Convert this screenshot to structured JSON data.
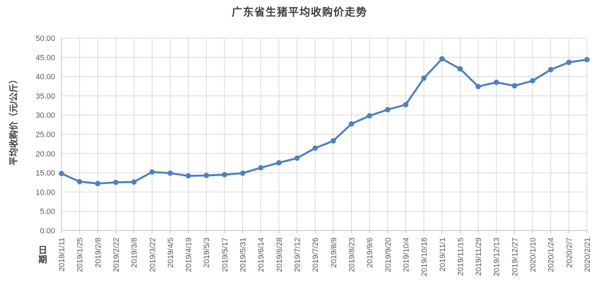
{
  "chart_data": {
    "type": "line",
    "title": "广东省生猪平均收购价走势",
    "ylabel": "平均收购价（元/公斤）",
    "xlabel": "日期",
    "categories": [
      "2019/1/11",
      "2019/1/25",
      "2019/2/8",
      "2019/2/22",
      "2019/3/8",
      "2019/3/22",
      "2019/4/5",
      "2019/4/19",
      "2019/5/3",
      "2019/5/17",
      "2019/5/31",
      "2019/6/14",
      "2019/6/28",
      "2019/7/12",
      "2019/7/26",
      "2019/8/9",
      "2019/8/23",
      "2019/9/6",
      "2019/9/20",
      "2019/10/4",
      "2019/10/18",
      "2019/11/1",
      "2019/11/15",
      "2019/11/29",
      "2019/12/13",
      "2019/12/27",
      "2020/1/10",
      "2020/1/24",
      "2020/2/7",
      "2020/2/21"
    ],
    "values": [
      14.8,
      12.7,
      12.2,
      12.5,
      12.6,
      15.2,
      14.9,
      14.2,
      14.3,
      14.5,
      14.9,
      16.3,
      17.6,
      18.8,
      21.4,
      23.3,
      27.7,
      29.8,
      31.4,
      32.7,
      39.6,
      44.6,
      42.0,
      37.4,
      38.5,
      37.6,
      38.9,
      41.8,
      43.7,
      44.4
    ],
    "ylim": [
      0,
      50
    ],
    "ytick_step": 5,
    "ytick_decimals": 2,
    "grid": true,
    "legend": "none",
    "marker": "circle",
    "colors": {
      "series": "#4f81bd",
      "grid": "#d9d9d9",
      "axis": "#bfbfbf",
      "tick_label": "#595959",
      "title": "#3f3f3f"
    }
  }
}
